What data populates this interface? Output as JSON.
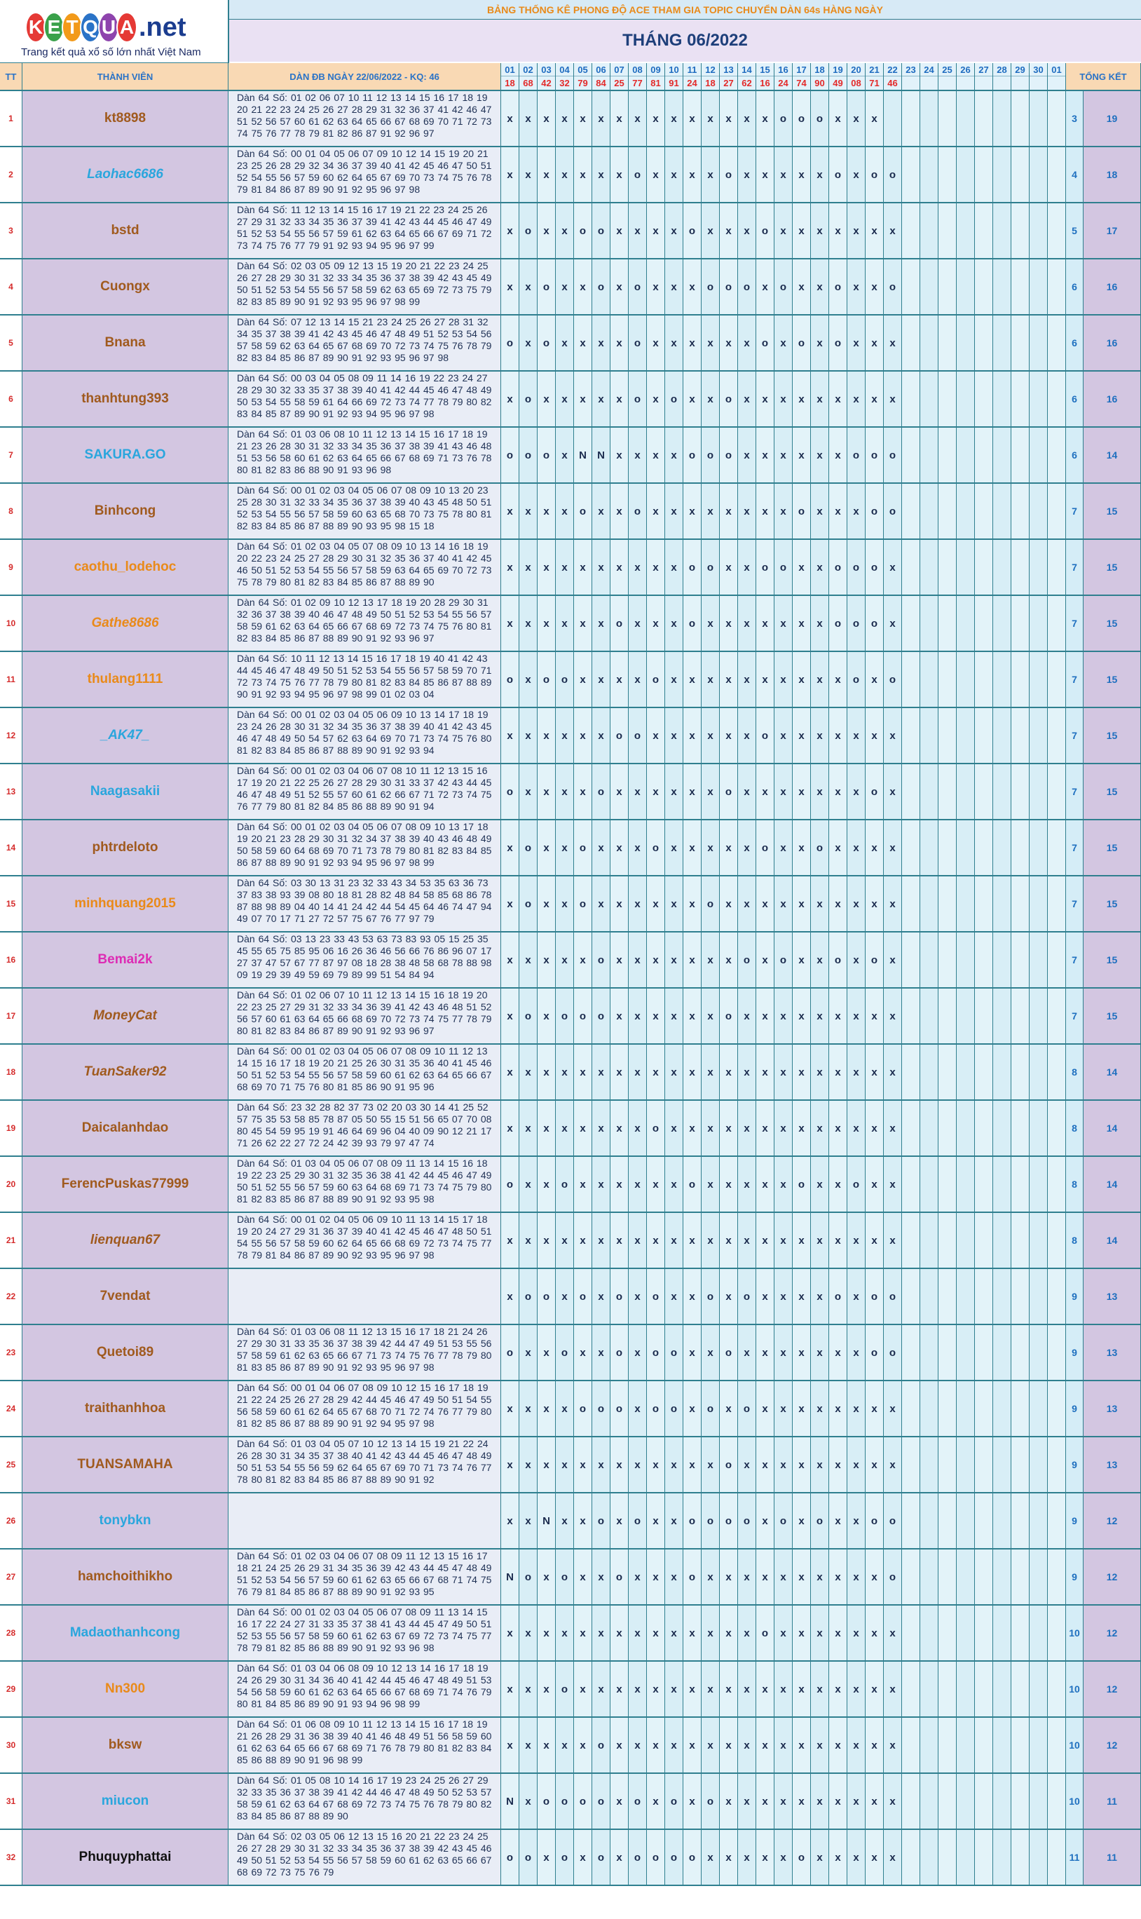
{
  "logo": {
    "letters": [
      "K",
      "E",
      "T",
      "Q",
      "U",
      "A"
    ],
    "net": ".net",
    "tagline": "Trang kết quả xổ số lớn nhất Việt Nam"
  },
  "title": "BẢNG THỐNG KÊ PHONG ĐỘ ACE THAM GIA TOPIC CHUYỂN DÀN 64s HÀNG NGÀY",
  "month": "THÁNG 06/2022",
  "headers": {
    "tt": "TT",
    "member": "THÀNH VIÊN",
    "numbers": "DÀN ĐB NGÀY 22/06/2022 - KQ: 46",
    "total": "TỔNG KẾT"
  },
  "days": [
    "01",
    "02",
    "03",
    "04",
    "05",
    "06",
    "07",
    "08",
    "09",
    "10",
    "11",
    "12",
    "13",
    "14",
    "15",
    "16",
    "17",
    "18",
    "19",
    "20",
    "21",
    "22",
    "23",
    "24",
    "25",
    "26",
    "27",
    "28",
    "29",
    "30",
    "01"
  ],
  "results": [
    "18",
    "68",
    "42",
    "32",
    "79",
    "84",
    "25",
    "77",
    "81",
    "91",
    "24",
    "18",
    "27",
    "62",
    "16",
    "24",
    "74",
    "90",
    "49",
    "08",
    "71",
    "46",
    "",
    "",
    "",
    "",
    "",
    "",
    "",
    "",
    ""
  ],
  "members": [
    {
      "tt": "1",
      "name": "kt8898",
      "color": "#a05a1e",
      "italic": false,
      "numbers": "Dàn 64 Số: 01 02 06 07 10 11 12 13 14 15 16 17 18 19 20 21 22 23 24 25 26 27 28 29 31 32 36 37 41 42 46 47 51 52 56 57 60 61 62 63 64 65 66 67 68 69 70 71 72 73 74 75 76 77 78 79 81 82 86 87 91 92 96 97",
      "marks": "xxxxxxxxxxxxxxxoooxxx",
      "w": "3",
      "t": "19"
    },
    {
      "tt": "2",
      "name": "Laohac6686",
      "color": "#2aa6dd",
      "italic": true,
      "numbers": "Dàn 64 Số: 00 01 04 05 06 07 09 10 12 14 15 19 20 21 23 25 26 28 29 32 34 36 37 39 40 41 42 45 46 47 50 51 52 54 55 56 57 59 60 62 64 65 67 69 70 73 74 75 76 78 79 81 84 86 87 89 90 91 92 95 96 97 98",
      "marks": "xxxxxxxoxxxxoxxxxxoxoo",
      "w": "4",
      "t": "18"
    },
    {
      "tt": "3",
      "name": "bstd",
      "color": "#a05a1e",
      "italic": false,
      "numbers": "Dàn 64 Số: 11 12 13 14 15 16 17 19 21 22 23 24 25 26 27 29 31 32 33 34 35 36 37 39 41 42 43 44 45 46 47 49 51 52 53 54 55 56 57 59 61 62 63 64 65 66 67 69 71 72 73 74 75 76 77 79 91 92 93 94 95 96 97 99",
      "marks": "xoxxooxxxxoxxxoxxxxxxx",
      "w": "5",
      "t": "17"
    },
    {
      "tt": "4",
      "name": "Cuongx",
      "color": "#a05a1e",
      "italic": false,
      "numbers": "Dàn 64 Số: 02 03 05 09 12 13 15 19 20 21 22 23 24 25 26 27 28 29 30 31 32 33 34 35 36 37 38 39 42 43 45 49 50 51 52 53 54 55 56 57 58 59 62 63 65 69 72 73 75 79 82 83 85 89 90 91 92 93 95 96 97 98 99",
      "marks": "xxoxxoxoxxxoooxoxxoxxo",
      "w": "6",
      "t": "16"
    },
    {
      "tt": "5",
      "name": "Bnana",
      "color": "#a05a1e",
      "italic": false,
      "numbers": "Dàn 64 Số: 07 12 13 14 15 21 23 24 25 26 27 28 31 32 34 35 37 38 39 41 42 43 45 46 47 48 49 51 52 53 54 56 57 58 59 62 63 64 65 67 68 69 70 72 73 74 75 76 78 79 82 83 84 85 86 87 89 90 91 92 93 95 96 97 98",
      "marks": "oxoxxxxoxxxxxxoxoxoxxx",
      "w": "6",
      "t": "16"
    },
    {
      "tt": "6",
      "name": "thanhtung393",
      "color": "#a05a1e",
      "italic": false,
      "numbers": "Dàn 64 Số: 00 03 04 05 08 09 11 14 16 19 22 23 24 27 28 29 30 32 33 35 37 38 39 40 41 42 44 45 46 47 48 49 50 53 54 55 58 59 61 64 66 69 72 73 74 77 78 79 80 82 83 84 85 87 89 90 91 92 93 94 95 96 97 98",
      "marks": "xoxxxxxoxoxxoxxxxxxxxx",
      "w": "6",
      "t": "16"
    },
    {
      "tt": "7",
      "name": "SAKURA.GO",
      "color": "#2aa6dd",
      "italic": false,
      "numbers": "Dàn 64 Số: 01 03 06 08 10 11 12 13 14 15 16 17 18 19 21 23 26 28 30 31 32 33 34 35 36 37 38 39 41 43 46 48 51 53 56 58 60 61 62 63 64 65 66 67 68 69 71 73 76 78 80 81 82 83 86 88 90 91 93 96 98",
      "marks": "oooxNNxxxxoooxxxxxxooo",
      "w": "6",
      "t": "14"
    },
    {
      "tt": "8",
      "name": "Binhcong",
      "color": "#a05a1e",
      "italic": false,
      "numbers": "Dàn 64 Số: 00 01 02 03 04 05 06 07 08 09 10 13 20 23 25 28 30 31 32 33 34 35 36 37 38 39 40 43 45 48 50 51 52 53 54 55 56 57 58 59 60 63 65 68 70 73 75 78 80 81 82 83 84 85 86 87 88 89 90 93 95 98 15 18",
      "marks": "xxxxoxxoxxxxxxxxoxxxoo",
      "w": "7",
      "t": "15"
    },
    {
      "tt": "9",
      "name": "caothu_lodehoc",
      "color": "#e98a1a",
      "italic": false,
      "numbers": "Dàn 64 Số: 01 02 03 04 05 07 08 09 10 13 14 16 18 19 20 22 23 24 25 27 28 29 30 31 32 35 36 37 40 41 42 45 46 50 51 52 53 54 55 56 57 58 59 63 64 65 69 70 72 73 75 78 79 80 81 82 83 84 85 86 87 88 89 90",
      "marks": "xxxxxxxxxxooxxooxxooox",
      "w": "7",
      "t": "15"
    },
    {
      "tt": "10",
      "name": "Gathe8686",
      "color": "#e98a1a",
      "italic": true,
      "numbers": "Dàn 64 Số: 01 02 09 10 12 13 17 18 19 20 28 29 30 31 32 36 37 38 39 40 46 47 48 49 50 51 52 53 54 55 56 57 58 59 61 62 63 64 65 66 67 68 69 72 73 74 75 76 80 81 82 83 84 85 86 87 88 89 90 91 92 93 96 97",
      "marks": "xxxxxxoxxxoxxxxxxxooox",
      "w": "7",
      "t": "15"
    },
    {
      "tt": "11",
      "name": "thulang1111",
      "color": "#e98a1a",
      "italic": false,
      "numbers": "Dàn 64 Số: 10 11 12 13 14 15 16 17 18 19 40 41 42 43 44 45 46 47 48 49 50 51 52 53 54 55 56 57 58 59 70 71 72 73 74 75 76 77 78 79 80 81 82 83 84 85 86 87 88 89 90 91 92 93 94 95 96 97 98 99 01 02 03 04",
      "marks": "oxooxxxxoxxxxxxxxxxoxo",
      "w": "7",
      "t": "15"
    },
    {
      "tt": "12",
      "name": "_AK47_",
      "color": "#2aa6dd",
      "italic": true,
      "numbers": "Dàn 64 Số: 00 01 02 03 04 05 06 09 10 13 14 17 18 19 23 24 26 28 30 31 32 34 35 36 37 38 39 40 41 42 43 45 46 47 48 49 50 54 57 62 63 64 69 70 71 73 74 75 76 80 81 82 83 84 85 86 87 88 89 90 91 92 93 94",
      "marks": "xxxxxxooxxxxxxoxxxxxxx",
      "w": "7",
      "t": "15"
    },
    {
      "tt": "13",
      "name": "Naagasakii",
      "color": "#2aa6dd",
      "italic": false,
      "numbers": "Dàn 64 Số: 00 01 02 03 04 06 07 08 10 11 12 13 15 16 17 19 20 21 22 25 26 27 28 29 30 31 33 37 42 43 44 45 46 47 48 49 51 52 55 57 60 61 62 66 67 71 72 73 74 75 76 77 79 80 81 82 84 85 86 88 89 90 91 94",
      "marks": "oxxxxoxxxxxxoxxxxxxxox",
      "w": "7",
      "t": "15"
    },
    {
      "tt": "14",
      "name": "phtrdeloto",
      "color": "#a05a1e",
      "italic": false,
      "numbers": "Dàn 64 Số: 00 01 02 03 04 05 06 07 08 09 10 13 17 18 19 20 21 23 28 29 30 31 32 34 37 38 39 40 43 46 48 49 50 58 59 60 64 68 69 70 71 73 78 79 80 81 82 83 84 85 86 87 88 89 90 91 92 93 94 95 96 97 98 99",
      "marks": "xoxxoxxxoxxxxxoxxoxxxx",
      "w": "7",
      "t": "15"
    },
    {
      "tt": "15",
      "name": "minhquang2015",
      "color": "#e98a1a",
      "italic": false,
      "numbers": "Dàn 64 Số: 03 30 13 31 23 32 33 43 34 53 35 63 36 73 37 83 38 93 39 08 80 18 81 28 82 48 84 58 85 68 86 78 87 88 98 89 04 40 14 41 24 42 44 54 45 64 46 74 47 94 49 07 70 17 71 27 72 57 75 67 76 77 97 79",
      "marks": "xoxxoxxxxxxoxxxxxxxxxx",
      "w": "7",
      "t": "15"
    },
    {
      "tt": "16",
      "name": "Bemai2k",
      "color": "#dd2cb4",
      "italic": false,
      "numbers": "Dàn 64 Số: 03 13 23 33 43 53 63 73 83 93 05 15 25 35 45 55 65 75 85 95 06 16 26 36 46 56 66 76 86 96 07 17 27 37 47 57 67 77 87 97 08 18 28 38 48 58 68 78 88 98 09 19 29 39 49 59 69 79 89 99 51 54 84 94",
      "marks": "xxxxxoxxxxxxxoxoxxoxox",
      "w": "7",
      "t": "15"
    },
    {
      "tt": "17",
      "name": "MoneyCat",
      "color": "#a05a1e",
      "italic": true,
      "numbers": "Dàn 64 Số: 01 02 06 07 10 11 12 13 14 15 16 18 19 20 22 23 25 27 29 31 32 33 34 36 39 41 42 43 46 48 51 52 56 57 60 61 63 64 65 66 68 69 70 72 73 74 75 77 78 79 80 81 82 83 84 86 87 89 90 91 92 93 96 97",
      "marks": "xoxoooxxxxxxoxxxxxxxxx",
      "w": "7",
      "t": "15"
    },
    {
      "tt": "18",
      "name": "TuanSaker92",
      "color": "#a05a1e",
      "italic": true,
      "numbers": "Dàn 64 Số: 00 01 02 03 04 05 06 07 08 09 10 11 12 13 14 15 16 17 18 19 20 21 25 26 30 31 35 36 40 41 45 46 50 51 52 53 54 55 56 57 58 59 60 61 62 63 64 65 66 67 68 69 70 71 75 76 80 81 85 86 90 91 95 96",
      "marks": "xxxxxxxxxxxxxxxxxxxxxx",
      "w": "8",
      "t": "14"
    },
    {
      "tt": "19",
      "name": "Daicalanhdao",
      "color": "#a05a1e",
      "italic": false,
      "numbers": "Dàn 64 Số: 23 32 28 82 37 73 02 20 03 30 14 41 25 52 57 75 35 53 58 85 78 87 05 50 55 15 51 56 65 07 70 08 80 45 54 59 95 19 91 46 64 69 96 04 40 09 90 12 21 17 71 26 62 22 27 72 24 42 39 93 79 97 47 74",
      "marks": "xxxxxxxxoxxxxxxxxxxxxx",
      "w": "8",
      "t": "14"
    },
    {
      "tt": "20",
      "name": "FerencPuskas77999",
      "color": "#a05a1e",
      "italic": false,
      "numbers": "Dàn 64 Số: 01 03 04 05 06 07 08 09 11 13 14 15 16 18 19 22 23 25 29 30 31 32 35 36 38 41 42 44 45 46 47 49 50 51 52 55 56 57 59 60 63 64 68 69 71 73 74 75 79 80 81 82 83 85 86 87 88 89 90 91 92 93 95 98",
      "marks": "oxxoxxxxxxoxxxxxoxxoxx",
      "w": "8",
      "t": "14"
    },
    {
      "tt": "21",
      "name": "lienquan67",
      "color": "#a05a1e",
      "italic": true,
      "numbers": "Dàn 64 Số: 00 01 02 04 05 06 09 10 11 13 14 15 17 18 19 20 24 27 29 31 36 37 39 40 41 42 45 46 47 48 50 51 54 55 56 57 58 59 60 62 64 65 66 68 69 72 73 74 75 77 78 79 81 84 86 87 89 90 92 93 95 96 97 98",
      "marks": "xxxxxxxxxxxxxxxxxxxxxx",
      "w": "8",
      "t": "14"
    },
    {
      "tt": "22",
      "name": "7vendat",
      "color": "#a05a1e",
      "italic": false,
      "numbers": "",
      "marks": "xooxoxoxoxxoxoxxxxoxoo",
      "w": "9",
      "t": "13"
    },
    {
      "tt": "23",
      "name": "Quetoi89",
      "color": "#a05a1e",
      "italic": false,
      "numbers": "Dàn 64 Số: 01 03 06 08 11 12 13 15 16 17 18 21 24 26 27 29 30 31 33 35 36 37 38 39 42 44 47 49 51 53 55 56 57 58 59 61 62 63 65 66 67 71 73 74 75 76 77 78 79 80 81 83 85 86 87 89 90 91 92 93 95 96 97 98",
      "marks": "oxxoxxoxooxxoxxxxxxxoo",
      "w": "9",
      "t": "13"
    },
    {
      "tt": "24",
      "name": "traithanhhoa",
      "color": "#a05a1e",
      "italic": false,
      "numbers": "Dàn 64 Số: 00 01 04 06 07 08 09 10 12 15 16 17 18 19 21 22 24 25 26 27 28 29 42 44 45 46 47 49 50 51 54 55 56 58 59 60 61 62 64 65 67 68 70 71 72 74 76 77 79 80 81 82 85 86 87 88 89 90 91 92 94 95 97 98",
      "marks": "xxxxoooxooxoxoxxxxxxxx",
      "w": "9",
      "t": "13"
    },
    {
      "tt": "25",
      "name": "TUANSAMAHA",
      "color": "#a05a1e",
      "italic": false,
      "numbers": "Dàn 64 Số: 01 03 04 05 07 10 12 13 14 15 19 21 22 24 26 28 30 31 34 35 37 38 40 41 42 43 44 45 46 47 48 49 50 51 53 54 55 56 59 62 64 65 67 69 70 71 73 74 76 77 78 80 81 82 83 84 85 86 87 88 89 90 91 92",
      "marks": "xxxxxxxxxxxxoxxxxxxxxx",
      "w": "9",
      "t": "13"
    },
    {
      "tt": "26",
      "name": "tonybkn",
      "color": "#2aa6dd",
      "italic": false,
      "numbers": "",
      "marks": "xxNxxoxoxxooooxoxoxxoo",
      "w": "9",
      "t": "12"
    },
    {
      "tt": "27",
      "name": "hamchoithikho",
      "color": "#a05a1e",
      "italic": false,
      "numbers": "Dàn 64 Số: 01 02 03 04 06 07 08 09 11 12 13 15 16 17 18 21 24 25 26 29 31 34 35 36 39 42 43 44 45 47 48 49 51 52 53 54 56 57 59 60 61 62 63 65 66 67 68 71 74 75 76 79 81 84 85 86 87 88 89 90 91 92 93 95",
      "marks": "Noxoxxoxxxoxxxxxxxxxxo",
      "w": "9",
      "t": "12"
    },
    {
      "tt": "28",
      "name": "Madaothanhcong",
      "color": "#2aa6dd",
      "italic": false,
      "numbers": "Dàn 64 Số: 00 01 02 03 04 05 06 07 08 09 11 13 14 15 16 17 22 24 27 31 33 35 37 38 41 43 44 45 47 49 50 51 52 53 55 56 57 58 59 60 61 62 63 67 69 72 73 74 75 77 78 79 81 82 85 86 88 89 90 91 92 93 96 98",
      "marks": "xxxxxxxxxxxxxxoxxxxxxx",
      "w": "10",
      "t": "12"
    },
    {
      "tt": "29",
      "name": "Nn300",
      "color": "#e98a1a",
      "italic": false,
      "numbers": "Dàn 64 Số: 01 03 04 06 08 09 10 12 13 14 16 17 18 19 24 26 29 30 31 34 36 40 41 42 44 45 46 47 48 49 51 53 54 56 58 59 60 61 62 63 64 65 66 67 68 69 71 74 76 79 80 81 84 85 86 89 90 91 93 94 96 98 99",
      "marks": "xxxoxxxxxxxxxxxxxxxxxx",
      "w": "10",
      "t": "12"
    },
    {
      "tt": "30",
      "name": "bksw",
      "color": "#a05a1e",
      "italic": false,
      "numbers": "Dàn 64 Số: 01 06 08 09 10 11 12 13 14 15 16 17 18 19 21 26 28 29 31 36 38 39 40 41 46 48 49 51 56 58 59 60 61 62 63 64 65 66 67 68 69 71 76 78 79 80 81 82 83 84 85 86 88 89 90 91 96 98 99",
      "marks": "xxxxxoxxxxxxxxxxxxxxxx",
      "w": "10",
      "t": "12"
    },
    {
      "tt": "31",
      "name": "miucon",
      "color": "#2aa6dd",
      "italic": false,
      "numbers": "Dàn 64 Số: 01 05 08 10 14 16 17 19 23 24 25 26 27 29 32 33 35 36 37 38 39 41 42 44 46 47 48 49 50 52 53 57 58 59 61 62 63 64 67 68 69 72 73 74 75 76 78 79 80 82 83 84 85 86 87 88 89 90",
      "marks": "Nxooooxoxoxoxxxxxxxxxx",
      "w": "10",
      "t": "11"
    },
    {
      "tt": "32",
      "name": "Phuquyphattai",
      "color": "#111111",
      "italic": false,
      "numbers": "Dàn 64 Số: 02 03 05 06 12 13 15 16 20 21 22 23 24 25 26 27 28 29 30 31 32 33 34 35 36 37 38 39 42 43 45 46 49 50 51 52 53 54 55 56 57 58 59 60 61 62 63 65 66 67 68 69 72 73 75 76 79",
      "marks": "ooxoxoxooooxxxxxoxxxxx",
      "w": "11",
      "t": "11"
    }
  ]
}
